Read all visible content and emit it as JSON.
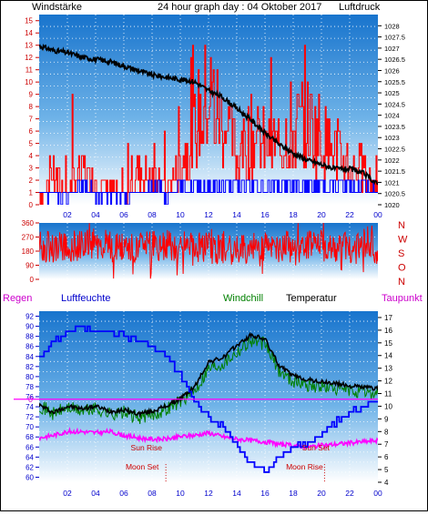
{
  "title": "24 hour graph day : 04 Oktober 2017",
  "colors": {
    "wind_avg": "#0000ff",
    "wind_gust": "#ff0000",
    "pressure": "#000000",
    "direction": "#ff0000",
    "temperature": "#000000",
    "windchill": "#008000",
    "dewpoint": "#ff00ff",
    "humidity": "#0000ff",
    "rain": "#ff00ff",
    "label_red": "#cc0000",
    "label_blue": "#0000cc",
    "axis_label": "#000000",
    "sun_label": "#cc0000"
  },
  "x_ticks": [
    "02",
    "04",
    "06",
    "08",
    "10",
    "12",
    "14",
    "16",
    "18",
    "20",
    "22",
    "00"
  ],
  "chart_data": [
    {
      "type": "line",
      "panel": "wind_pressure",
      "left_axis_label": "Windstärke",
      "right_axis_label": "Luftdruck",
      "left_ticks": [
        "0",
        "1",
        "2",
        "3",
        "4",
        "5",
        "6",
        "7",
        "8",
        "9",
        "10",
        "11",
        "12",
        "13",
        "14",
        "15"
      ],
      "right_ticks": [
        "1020",
        "1020.5",
        "1021",
        "1021.5",
        "1022",
        "1022.5",
        "1023",
        "1023.5",
        "1024",
        "1024.5",
        "1025",
        "1025.5",
        "1026",
        "1026.5",
        "1027",
        "1027.5",
        "1028"
      ],
      "ylim_left": [
        0,
        15.5
      ],
      "ylim_right": [
        1020,
        1028.5
      ],
      "x_hours": [
        0,
        1,
        2,
        3,
        4,
        5,
        6,
        7,
        8,
        9,
        10,
        11,
        12,
        13,
        14,
        15,
        16,
        17,
        18,
        19,
        20,
        21,
        22,
        23,
        24
      ],
      "series": [
        {
          "key": "pressure",
          "axis": "right",
          "values": [
            1027.1,
            1026.9,
            1026.8,
            1026.6,
            1026.5,
            1026.4,
            1026.2,
            1026.0,
            1025.8,
            1025.7,
            1025.6,
            1025.5,
            1025.1,
            1024.8,
            1024.3,
            1023.8,
            1023.2,
            1022.7,
            1022.3,
            1022.0,
            1021.8,
            1021.6,
            1021.6,
            1021.4,
            1020.9
          ]
        },
        {
          "key": "wind_gust",
          "axis": "left",
          "values": [
            1,
            3,
            2,
            4,
            3,
            2,
            1,
            4,
            3,
            2,
            5,
            9,
            13,
            10,
            6,
            8,
            7,
            7,
            9,
            10,
            8,
            6,
            5,
            4,
            2
          ]
        },
        {
          "key": "wind_avg",
          "axis": "left",
          "values": [
            1,
            1,
            1,
            2,
            1,
            1,
            1,
            1,
            2,
            1,
            2,
            2,
            2,
            2,
            2,
            2,
            2,
            2,
            2,
            2,
            2,
            2,
            2,
            2,
            1
          ]
        }
      ]
    },
    {
      "type": "bar",
      "panel": "wind_direction",
      "right_axis_label": "NWSON",
      "left_ticks": [
        "0",
        "90",
        "180",
        "270",
        "360"
      ],
      "ylim": [
        0,
        360
      ],
      "x_hours": [
        0,
        2,
        4,
        6,
        8,
        10,
        12,
        14,
        16,
        18,
        20,
        22,
        24
      ],
      "values": [
        210,
        200,
        230,
        190,
        210,
        220,
        200,
        190,
        210,
        200,
        220,
        200,
        190
      ]
    },
    {
      "type": "line",
      "panel": "temperature_humidity",
      "labels": {
        "rain": "Regen",
        "humidity": "Luftfeuchte",
        "windchill": "Windchill",
        "temperature": "Temperatur",
        "dewpoint": "Taupunkt"
      },
      "left_ticks": [
        "60",
        "62",
        "64",
        "66",
        "68",
        "70",
        "72",
        "74",
        "76",
        "78",
        "80",
        "82",
        "84",
        "86",
        "88",
        "90",
        "92"
      ],
      "right_ticks": [
        "4",
        "5",
        "6",
        "7",
        "8",
        "9",
        "10",
        "11",
        "12",
        "13",
        "14",
        "15",
        "16",
        "17"
      ],
      "ylim_left": [
        59,
        93
      ],
      "ylim_right": [
        4,
        17.5
      ],
      "rain_zero_label": "0",
      "rain_zero_level": 75.5,
      "x_hours": [
        0,
        1,
        2,
        3,
        4,
        5,
        6,
        7,
        8,
        9,
        10,
        11,
        12,
        13,
        14,
        15,
        16,
        17,
        18,
        19,
        20,
        21,
        22,
        23,
        24
      ],
      "series": [
        {
          "key": "humidity",
          "axis": "left",
          "values": [
            84,
            87,
            89,
            90,
            89,
            89,
            88,
            87,
            86,
            84,
            80,
            75,
            72,
            70,
            66,
            63,
            61,
            64,
            66,
            67,
            69,
            71,
            73,
            74,
            75
          ]
        },
        {
          "key": "temperature",
          "axis": "right",
          "values": [
            10.1,
            9.5,
            10.0,
            9.8,
            10.0,
            9.6,
            9.7,
            9.4,
            9.6,
            10.0,
            10.6,
            11.5,
            13.5,
            13.8,
            14.8,
            15.6,
            15.3,
            13.2,
            12.4,
            12.1,
            11.9,
            11.8,
            11.6,
            11.5,
            11.4
          ]
        },
        {
          "key": "windchill",
          "axis": "right",
          "values": [
            10.1,
            9.4,
            9.9,
            9.6,
            9.8,
            9.4,
            9.5,
            9.1,
            9.3,
            9.8,
            10.4,
            11.2,
            13.0,
            13.4,
            14.3,
            15.2,
            14.9,
            12.8,
            12.0,
            11.7,
            11.5,
            11.4,
            11.2,
            11.1,
            11.0
          ]
        },
        {
          "key": "dewpoint",
          "axis": "right",
          "values": [
            7.5,
            7.7,
            8.0,
            8.0,
            7.9,
            8.0,
            7.7,
            7.5,
            7.4,
            7.4,
            7.6,
            7.7,
            7.9,
            7.6,
            7.4,
            7.3,
            7.2,
            7.0,
            6.9,
            6.8,
            6.9,
            7.0,
            7.1,
            7.2,
            7.3
          ]
        }
      ],
      "annotations": [
        {
          "key": "sun_rise",
          "text": "Sun Rise",
          "hour": 7.6,
          "level": 65.3
        },
        {
          "key": "sun_set",
          "text": "Sun Set",
          "hour": 19.6,
          "level": 65.3
        },
        {
          "key": "moon_set",
          "text": "Moon Set",
          "hour": 7.3,
          "level": 61.5,
          "marker": true
        },
        {
          "key": "moon_rise",
          "text": "Moon Rise",
          "hour": 18.8,
          "level": 61.5,
          "marker": true
        }
      ]
    }
  ]
}
